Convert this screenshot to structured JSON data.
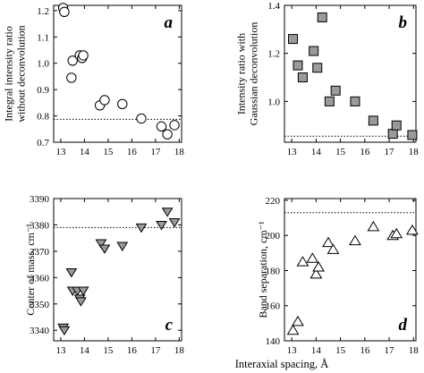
{
  "figure": {
    "xlabel": "Interaxial spacing, Å"
  },
  "chart_data": [
    {
      "id": "a",
      "type": "scatter",
      "panel_letter": "a",
      "ylabel_lines": [
        "Integral intensity ratio",
        "without deconvolution"
      ],
      "xlim": [
        12.7,
        18.1
      ],
      "ylim": [
        0.7,
        1.22
      ],
      "xticks": [
        "13",
        "14",
        "15",
        "16",
        "17",
        "18"
      ],
      "yticks": [
        "0.7",
        "0.8",
        "0.9",
        "1.0",
        "1.1",
        "1.2"
      ],
      "marker": "open-circle",
      "reference_line": 0.787,
      "x": [
        13.1,
        13.15,
        13.45,
        13.5,
        13.8,
        13.9,
        13.95,
        14.65,
        14.85,
        15.6,
        16.4,
        17.25,
        17.5,
        17.8
      ],
      "y": [
        1.21,
        1.195,
        0.945,
        1.01,
        1.03,
        1.02,
        1.03,
        0.84,
        0.86,
        0.845,
        0.79,
        0.76,
        0.73,
        0.765
      ]
    },
    {
      "id": "b",
      "type": "scatter",
      "panel_letter": "b",
      "ylabel_lines": [
        "Intensity ratio with",
        "Gaussian deconvolution"
      ],
      "xlim": [
        12.7,
        18.1
      ],
      "ylim": [
        0.83,
        1.4
      ],
      "xticks": [
        "13",
        "14",
        "15",
        "16",
        "17",
        "18"
      ],
      "yticks": [
        "0.8",
        "1.0",
        "1.2",
        "1.4"
      ],
      "marker": "grey-square",
      "reference_line": 0.855,
      "x": [
        13.05,
        13.25,
        13.45,
        13.9,
        14.05,
        14.25,
        14.55,
        14.8,
        15.6,
        16.35,
        17.15,
        17.3,
        17.95
      ],
      "y": [
        1.26,
        1.15,
        1.1,
        1.21,
        1.14,
        1.35,
        1.0,
        1.045,
        1.0,
        0.92,
        0.865,
        0.9,
        0.86
      ]
    },
    {
      "id": "c",
      "type": "scatter",
      "panel_letter": "c",
      "ylabel": "Center of mass, cm⁻¹",
      "xlim": [
        12.7,
        18.1
      ],
      "ylim": [
        3336,
        3390
      ],
      "xticks": [
        "13",
        "14",
        "15",
        "16",
        "17",
        "18"
      ],
      "yticks": [
        "3340",
        "3350",
        "3360",
        "3370",
        "3380",
        "3390"
      ],
      "marker": "grey-triangle-down",
      "reference_line": 3379,
      "x": [
        13.1,
        13.15,
        13.45,
        13.5,
        13.7,
        13.8,
        13.85,
        13.95,
        14.7,
        14.85,
        15.6,
        16.4,
        17.25,
        17.5,
        17.8
      ],
      "y": [
        3341,
        3340,
        3362,
        3355,
        3355,
        3352,
        3351,
        3355,
        3373,
        3371,
        3372,
        3379,
        3380,
        3385,
        3381
      ]
    },
    {
      "id": "d",
      "type": "scatter",
      "panel_letter": "d",
      "ylabel": "Band separation, cm⁻¹",
      "xlim": [
        12.7,
        18.1
      ],
      "ylim": [
        140,
        221
      ],
      "xticks": [
        "13",
        "14",
        "15",
        "16",
        "17",
        "18"
      ],
      "yticks": [
        "140",
        "160",
        "180",
        "200",
        "220"
      ],
      "marker": "open-triangle-up",
      "reference_line": 213,
      "x": [
        13.05,
        13.25,
        13.45,
        13.85,
        14.0,
        14.1,
        14.5,
        14.7,
        15.6,
        16.35,
        17.15,
        17.3,
        17.95
      ],
      "y": [
        146,
        151,
        185,
        187,
        178,
        182,
        196,
        192,
        197,
        205,
        200,
        201,
        203
      ]
    }
  ]
}
